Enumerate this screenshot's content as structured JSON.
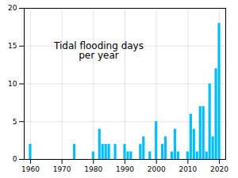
{
  "chart_data": {
    "type": "bar",
    "title": "Tidal flooding days\nper year",
    "x": [
      1960,
      1961,
      1962,
      1963,
      1964,
      1965,
      1966,
      1967,
      1968,
      1969,
      1970,
      1971,
      1972,
      1973,
      1974,
      1975,
      1976,
      1977,
      1978,
      1979,
      1980,
      1981,
      1982,
      1983,
      1984,
      1985,
      1986,
      1987,
      1988,
      1989,
      1990,
      1991,
      1992,
      1993,
      1994,
      1995,
      1996,
      1997,
      1998,
      1999,
      2000,
      2001,
      2002,
      2003,
      2004,
      2005,
      2006,
      2007,
      2008,
      2009,
      2010,
      2011,
      2012,
      2013,
      2014,
      2015,
      2016,
      2017,
      2018,
      2019,
      2020
    ],
    "values": [
      2,
      0,
      0,
      0,
      0,
      0,
      0,
      0,
      0,
      0,
      0,
      0,
      0,
      0,
      2,
      0,
      0,
      0,
      0,
      0,
      1,
      0,
      4,
      2,
      2,
      2,
      0,
      2,
      0,
      0,
      2,
      1,
      1,
      0,
      0,
      2,
      3,
      0,
      1,
      0,
      5,
      0,
      2,
      3,
      0,
      1,
      4,
      1,
      0,
      0,
      1,
      6,
      4,
      1,
      7,
      7,
      1,
      10,
      3,
      12,
      18
    ],
    "color": "#00bfff",
    "xlim": [
      1958,
      2022
    ],
    "ylim": [
      0,
      20
    ],
    "xticks": [
      1960,
      1970,
      1980,
      1990,
      2000,
      2010,
      2020
    ],
    "yticks": [
      0,
      5,
      10,
      15,
      20
    ],
    "grid": true
  }
}
